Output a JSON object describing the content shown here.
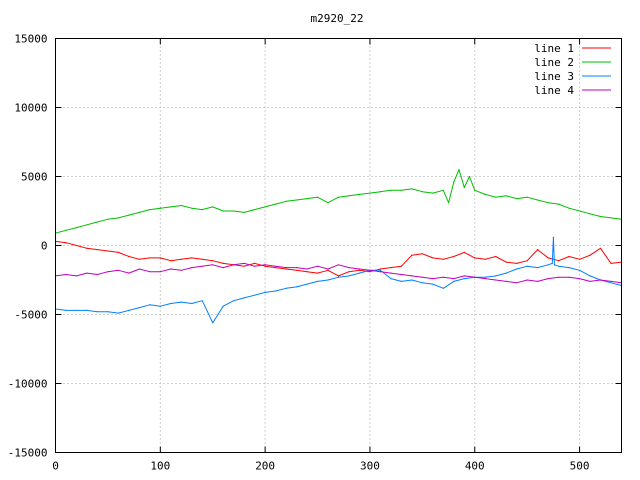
{
  "chart_data": {
    "type": "line",
    "title": "m2920_22",
    "xlabel": "",
    "ylabel": "",
    "xlim": [
      0,
      540
    ],
    "ylim": [
      -15000,
      15000
    ],
    "xticks": [
      0,
      100,
      200,
      300,
      400,
      500
    ],
    "yticks": [
      -15000,
      -10000,
      -5000,
      0,
      5000,
      10000,
      15000
    ],
    "grid": true,
    "legend_position": "top-right",
    "series": [
      {
        "name": "line 1",
        "color": "#ff0000",
        "x": [
          0,
          10,
          20,
          30,
          40,
          50,
          60,
          70,
          80,
          90,
          100,
          110,
          120,
          130,
          140,
          150,
          160,
          170,
          180,
          190,
          200,
          210,
          220,
          230,
          240,
          250,
          260,
          270,
          280,
          290,
          300,
          310,
          320,
          330,
          340,
          350,
          360,
          370,
          380,
          390,
          400,
          410,
          420,
          430,
          440,
          450,
          460,
          470,
          480,
          490,
          500,
          510,
          520,
          530,
          540
        ],
        "values": [
          300,
          200,
          0,
          -200,
          -300,
          -400,
          -500,
          -800,
          -1000,
          -900,
          -900,
          -1100,
          -1000,
          -900,
          -1000,
          -1100,
          -1300,
          -1400,
          -1500,
          -1300,
          -1500,
          -1600,
          -1700,
          -1800,
          -1900,
          -2000,
          -1800,
          -2200,
          -1900,
          -1800,
          -1900,
          -1700,
          -1600,
          -1500,
          -700,
          -600,
          -900,
          -1000,
          -800,
          -500,
          -900,
          -1000,
          -800,
          -1200,
          -1300,
          -1100,
          -300,
          -900,
          -1100,
          -800,
          -1000,
          -700,
          -200,
          -1300,
          -1200
        ]
      },
      {
        "name": "line 2",
        "color": "#00c000",
        "x": [
          0,
          10,
          20,
          30,
          40,
          50,
          60,
          70,
          80,
          90,
          100,
          110,
          120,
          130,
          140,
          150,
          160,
          170,
          180,
          190,
          200,
          210,
          220,
          230,
          240,
          250,
          260,
          270,
          280,
          290,
          300,
          310,
          320,
          330,
          340,
          350,
          360,
          370,
          375,
          380,
          385,
          390,
          395,
          400,
          410,
          420,
          430,
          440,
          450,
          460,
          470,
          480,
          490,
          500,
          510,
          520,
          530,
          540
        ],
        "values": [
          900,
          1100,
          1300,
          1500,
          1700,
          1900,
          2000,
          2200,
          2400,
          2600,
          2700,
          2800,
          2900,
          2700,
          2600,
          2800,
          2500,
          2500,
          2400,
          2600,
          2800,
          3000,
          3200,
          3300,
          3400,
          3500,
          3100,
          3500,
          3600,
          3700,
          3800,
          3900,
          4000,
          4000,
          4100,
          3900,
          3800,
          4000,
          3100,
          4600,
          5500,
          4200,
          5000,
          4000,
          3700,
          3500,
          3600,
          3400,
          3500,
          3300,
          3100,
          3000,
          2700,
          2500,
          2300,
          2100,
          2000,
          1900
        ]
      },
      {
        "name": "line 3",
        "color": "#0080ff",
        "x": [
          0,
          10,
          20,
          30,
          40,
          50,
          60,
          70,
          80,
          90,
          100,
          110,
          120,
          130,
          140,
          145,
          150,
          155,
          160,
          170,
          180,
          190,
          200,
          210,
          220,
          230,
          240,
          250,
          260,
          270,
          280,
          290,
          300,
          310,
          320,
          330,
          340,
          350,
          360,
          370,
          380,
          390,
          400,
          410,
          420,
          430,
          440,
          450,
          460,
          470,
          474,
          475,
          476,
          480,
          490,
          500,
          510,
          520,
          530,
          540
        ],
        "values": [
          -4600,
          -4700,
          -4700,
          -4700,
          -4800,
          -4800,
          -4900,
          -4700,
          -4500,
          -4300,
          -4400,
          -4200,
          -4100,
          -4200,
          -4000,
          -4800,
          -5600,
          -5000,
          -4400,
          -4000,
          -3800,
          -3600,
          -3400,
          -3300,
          -3100,
          -3000,
          -2800,
          -2600,
          -2500,
          -2300,
          -2200,
          -2000,
          -1800,
          -1800,
          -2400,
          -2600,
          -2500,
          -2700,
          -2800,
          -3100,
          -2600,
          -2400,
          -2300,
          -2300,
          -2200,
          -2000,
          -1700,
          -1500,
          -1600,
          -1400,
          -1300,
          600,
          -1400,
          -1500,
          -1600,
          -1800,
          -2200,
          -2500,
          -2700,
          -2900
        ]
      },
      {
        "name": "line 4",
        "color": "#c000c0",
        "x": [
          0,
          10,
          20,
          30,
          40,
          50,
          60,
          70,
          80,
          90,
          100,
          110,
          120,
          130,
          140,
          150,
          160,
          170,
          180,
          190,
          200,
          210,
          220,
          230,
          240,
          250,
          260,
          270,
          280,
          290,
          300,
          310,
          320,
          330,
          340,
          350,
          360,
          370,
          380,
          390,
          400,
          410,
          420,
          430,
          440,
          450,
          460,
          470,
          480,
          490,
          500,
          510,
          520,
          530,
          540
        ],
        "values": [
          -2200,
          -2100,
          -2200,
          -2000,
          -2100,
          -1900,
          -1800,
          -2000,
          -1700,
          -1900,
          -1900,
          -1700,
          -1800,
          -1600,
          -1500,
          -1400,
          -1600,
          -1400,
          -1300,
          -1500,
          -1400,
          -1500,
          -1600,
          -1600,
          -1700,
          -1500,
          -1700,
          -1400,
          -1600,
          -1700,
          -1800,
          -1900,
          -2000,
          -2100,
          -2200,
          -2300,
          -2400,
          -2300,
          -2400,
          -2200,
          -2300,
          -2400,
          -2500,
          -2600,
          -2700,
          -2500,
          -2600,
          -2400,
          -2300,
          -2300,
          -2400,
          -2600,
          -2500,
          -2600,
          -2700
        ]
      }
    ]
  }
}
